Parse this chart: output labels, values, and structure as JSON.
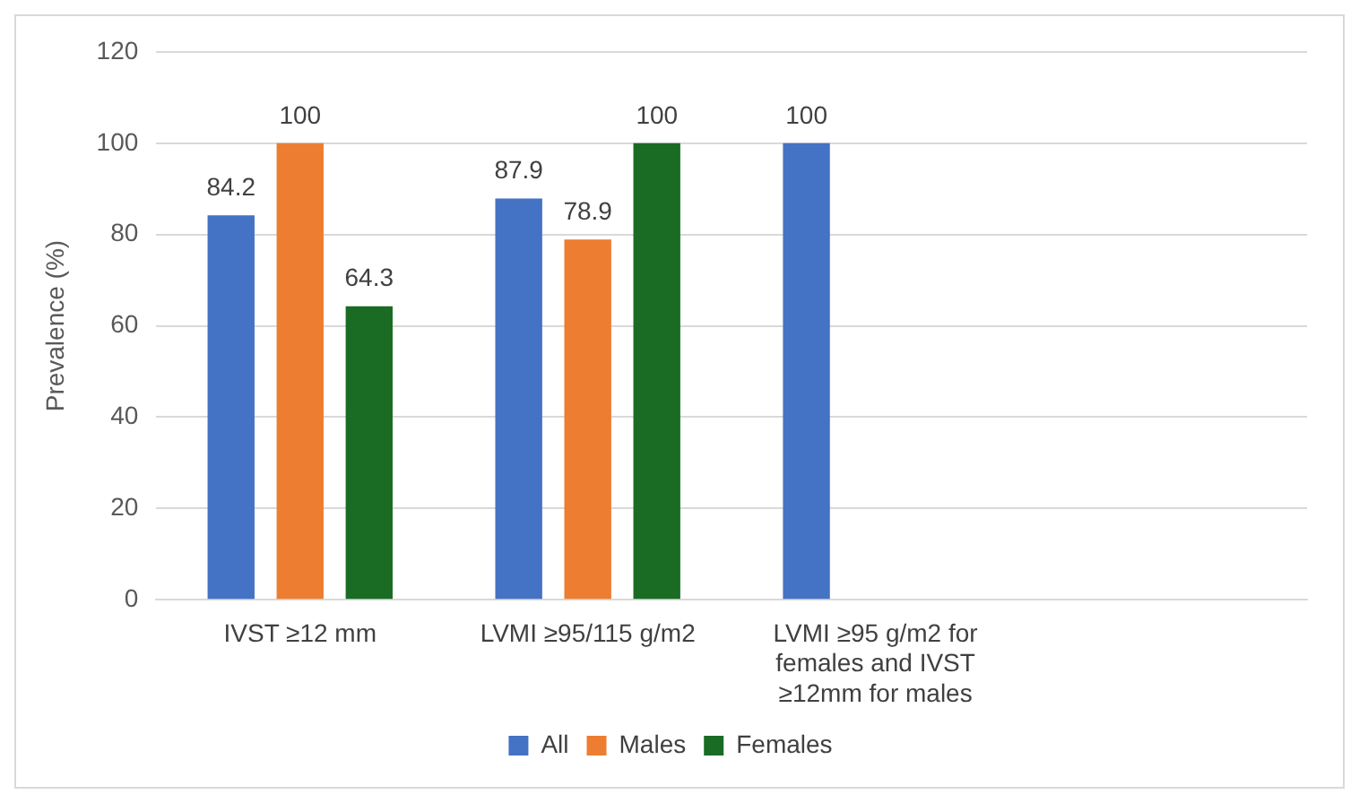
{
  "chart_data": {
    "type": "bar",
    "ylabel": "Prevalence (%)",
    "categories": [
      "IVST ≥12 mm",
      "LVMI ≥95/115 g/m2",
      "LVMI ≥95 g/m2 for females and IVST ≥12mm for males",
      null
    ],
    "series": [
      {
        "name": "All",
        "color": "#4472c4",
        "values": [
          84.2,
          87.9,
          100,
          null
        ]
      },
      {
        "name": "Males",
        "color": "#ed7d31",
        "values": [
          100,
          78.9,
          null,
          null
        ]
      },
      {
        "name": "Females",
        "color": "#1a6b24",
        "values": [
          64.3,
          100,
          null,
          null
        ]
      }
    ],
    "ylim": [
      0,
      120
    ],
    "yticks": [
      0,
      20,
      40,
      60,
      80,
      100,
      120
    ],
    "grid": "y",
    "legend": "bottom",
    "data_labels": true
  }
}
